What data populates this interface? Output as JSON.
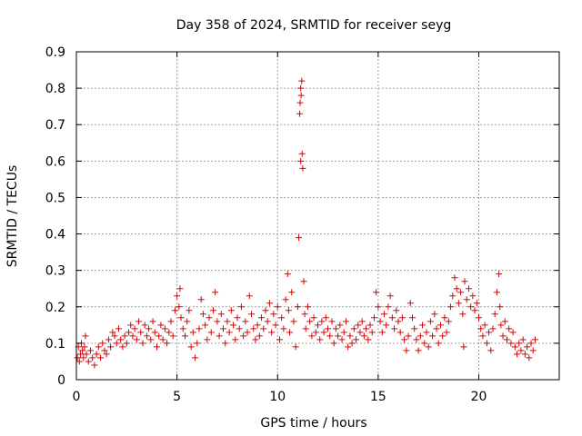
{
  "chart_data": {
    "type": "scatter",
    "title": "Day 358 of 2024, SRMTID for receiver seyg",
    "xlabel": "GPS time / hours",
    "ylabel": "SRMTID / TECUs",
    "xlim": [
      0,
      24
    ],
    "ylim": [
      0,
      0.9
    ],
    "x_ticks": [
      0,
      5,
      10,
      15,
      20
    ],
    "x_tick_labels": [
      "0",
      "5",
      "10",
      "15",
      "20"
    ],
    "y_ticks": [
      0,
      0.1,
      0.2,
      0.3,
      0.4,
      0.5,
      0.6,
      0.7,
      0.8,
      0.9
    ],
    "y_tick_labels": [
      "0",
      "0.1",
      "0.2",
      "0.3",
      "0.4",
      "0.5",
      "0.6",
      "0.7",
      "0.8",
      "0.9"
    ],
    "grid": true,
    "marker": "+",
    "color": "#e00000",
    "series": [
      {
        "name": "SRMTID",
        "points": [
          [
            0.05,
            0.06
          ],
          [
            0.1,
            0.09
          ],
          [
            0.15,
            0.05
          ],
          [
            0.2,
            0.07
          ],
          [
            0.25,
            0.1
          ],
          [
            0.3,
            0.08
          ],
          [
            0.35,
            0.06
          ],
          [
            0.4,
            0.09
          ],
          [
            0.45,
            0.12
          ],
          [
            0.5,
            0.07
          ],
          [
            0.6,
            0.05
          ],
          [
            0.7,
            0.08
          ],
          [
            0.8,
            0.06
          ],
          [
            0.9,
            0.04
          ],
          [
            1.0,
            0.07
          ],
          [
            1.1,
            0.09
          ],
          [
            1.2,
            0.06
          ],
          [
            1.3,
            0.1
          ],
          [
            1.4,
            0.08
          ],
          [
            1.5,
            0.07
          ],
          [
            1.6,
            0.11
          ],
          [
            1.7,
            0.09
          ],
          [
            1.8,
            0.13
          ],
          [
            1.9,
            0.12
          ],
          [
            2.0,
            0.1
          ],
          [
            2.1,
            0.14
          ],
          [
            2.2,
            0.11
          ],
          [
            2.3,
            0.09
          ],
          [
            2.4,
            0.12
          ],
          [
            2.5,
            0.1
          ],
          [
            2.6,
            0.13
          ],
          [
            2.7,
            0.15
          ],
          [
            2.8,
            0.12
          ],
          [
            2.9,
            0.14
          ],
          [
            3.0,
            0.11
          ],
          [
            3.1,
            0.16
          ],
          [
            3.2,
            0.13
          ],
          [
            3.3,
            0.1
          ],
          [
            3.4,
            0.15
          ],
          [
            3.5,
            0.12
          ],
          [
            3.6,
            0.14
          ],
          [
            3.7,
            0.11
          ],
          [
            3.8,
            0.16
          ],
          [
            3.9,
            0.13
          ],
          [
            4.0,
            0.09
          ],
          [
            4.1,
            0.12
          ],
          [
            4.2,
            0.15
          ],
          [
            4.3,
            0.11
          ],
          [
            4.4,
            0.14
          ],
          [
            4.5,
            0.1
          ],
          [
            4.6,
            0.13
          ],
          [
            4.7,
            0.16
          ],
          [
            4.8,
            0.12
          ],
          [
            4.9,
            0.19
          ],
          [
            5.0,
            0.23
          ],
          [
            5.1,
            0.2
          ],
          [
            5.15,
            0.25
          ],
          [
            5.2,
            0.17
          ],
          [
            5.3,
            0.14
          ],
          [
            5.4,
            0.12
          ],
          [
            5.5,
            0.16
          ],
          [
            5.6,
            0.19
          ],
          [
            5.7,
            0.09
          ],
          [
            5.8,
            0.13
          ],
          [
            5.9,
            0.06
          ],
          [
            6.0,
            0.1
          ],
          [
            6.1,
            0.14
          ],
          [
            6.2,
            0.22
          ],
          [
            6.3,
            0.18
          ],
          [
            6.4,
            0.15
          ],
          [
            6.5,
            0.11
          ],
          [
            6.6,
            0.17
          ],
          [
            6.7,
            0.13
          ],
          [
            6.8,
            0.19
          ],
          [
            6.9,
            0.24
          ],
          [
            7.0,
            0.16
          ],
          [
            7.1,
            0.12
          ],
          [
            7.2,
            0.18
          ],
          [
            7.3,
            0.14
          ],
          [
            7.4,
            0.1
          ],
          [
            7.5,
            0.16
          ],
          [
            7.6,
            0.13
          ],
          [
            7.7,
            0.19
          ],
          [
            7.8,
            0.15
          ],
          [
            7.9,
            0.11
          ],
          [
            8.0,
            0.17
          ],
          [
            8.1,
            0.14
          ],
          [
            8.2,
            0.2
          ],
          [
            8.3,
            0.12
          ],
          [
            8.4,
            0.16
          ],
          [
            8.5,
            0.13
          ],
          [
            8.6,
            0.23
          ],
          [
            8.7,
            0.18
          ],
          [
            8.8,
            0.14
          ],
          [
            8.9,
            0.11
          ],
          [
            9.0,
            0.15
          ],
          [
            9.1,
            0.12
          ],
          [
            9.2,
            0.17
          ],
          [
            9.3,
            0.14
          ],
          [
            9.4,
            0.19
          ],
          [
            9.5,
            0.16
          ],
          [
            9.6,
            0.21
          ],
          [
            9.7,
            0.13
          ],
          [
            9.8,
            0.18
          ],
          [
            9.9,
            0.15
          ],
          [
            10.0,
            0.2
          ],
          [
            10.1,
            0.11
          ],
          [
            10.2,
            0.17
          ],
          [
            10.3,
            0.14
          ],
          [
            10.4,
            0.22
          ],
          [
            10.5,
            0.29
          ],
          [
            10.55,
            0.19
          ],
          [
            10.6,
            0.13
          ],
          [
            10.7,
            0.24
          ],
          [
            10.8,
            0.16
          ],
          [
            10.9,
            0.09
          ],
          [
            11.0,
            0.2
          ],
          [
            11.05,
            0.39
          ],
          [
            11.1,
            0.73
          ],
          [
            11.12,
            0.76
          ],
          [
            11.15,
            0.8
          ],
          [
            11.17,
            0.78
          ],
          [
            11.2,
            0.82
          ],
          [
            11.22,
            0.62
          ],
          [
            11.25,
            0.58
          ],
          [
            11.15,
            0.6
          ],
          [
            11.3,
            0.27
          ],
          [
            11.35,
            0.18
          ],
          [
            11.4,
            0.14
          ],
          [
            11.5,
            0.2
          ],
          [
            11.6,
            0.16
          ],
          [
            11.7,
            0.12
          ],
          [
            11.8,
            0.17
          ],
          [
            11.9,
            0.13
          ],
          [
            12.0,
            0.15
          ],
          [
            12.1,
            0.11
          ],
          [
            12.2,
            0.16
          ],
          [
            12.3,
            0.13
          ],
          [
            12.4,
            0.17
          ],
          [
            12.5,
            0.14
          ],
          [
            12.6,
            0.12
          ],
          [
            12.7,
            0.16
          ],
          [
            12.8,
            0.1
          ],
          [
            12.9,
            0.14
          ],
          [
            13.0,
            0.12
          ],
          [
            13.1,
            0.15
          ],
          [
            13.2,
            0.11
          ],
          [
            13.3,
            0.13
          ],
          [
            13.4,
            0.16
          ],
          [
            13.5,
            0.09
          ],
          [
            13.6,
            0.12
          ],
          [
            13.7,
            0.1
          ],
          [
            13.8,
            0.14
          ],
          [
            13.9,
            0.11
          ],
          [
            14.0,
            0.15
          ],
          [
            14.1,
            0.13
          ],
          [
            14.2,
            0.16
          ],
          [
            14.3,
            0.12
          ],
          [
            14.4,
            0.14
          ],
          [
            14.5,
            0.11
          ],
          [
            14.6,
            0.15
          ],
          [
            14.7,
            0.13
          ],
          [
            14.8,
            0.17
          ],
          [
            14.9,
            0.24
          ],
          [
            15.0,
            0.2
          ],
          [
            15.1,
            0.16
          ],
          [
            15.2,
            0.13
          ],
          [
            15.3,
            0.18
          ],
          [
            15.4,
            0.15
          ],
          [
            15.5,
            0.2
          ],
          [
            15.6,
            0.23
          ],
          [
            15.7,
            0.17
          ],
          [
            15.8,
            0.14
          ],
          [
            15.9,
            0.19
          ],
          [
            16.0,
            0.16
          ],
          [
            16.1,
            0.13
          ],
          [
            16.2,
            0.17
          ],
          [
            16.3,
            0.11
          ],
          [
            16.4,
            0.08
          ],
          [
            16.5,
            0.12
          ],
          [
            16.6,
            0.21
          ],
          [
            16.7,
            0.17
          ],
          [
            16.8,
            0.14
          ],
          [
            16.9,
            0.11
          ],
          [
            17.0,
            0.08
          ],
          [
            17.1,
            0.12
          ],
          [
            17.2,
            0.15
          ],
          [
            17.3,
            0.1
          ],
          [
            17.4,
            0.13
          ],
          [
            17.5,
            0.09
          ],
          [
            17.6,
            0.16
          ],
          [
            17.7,
            0.12
          ],
          [
            17.8,
            0.18
          ],
          [
            17.9,
            0.14
          ],
          [
            18.0,
            0.1
          ],
          [
            18.1,
            0.15
          ],
          [
            18.2,
            0.12
          ],
          [
            18.3,
            0.17
          ],
          [
            18.4,
            0.13
          ],
          [
            18.5,
            0.16
          ],
          [
            18.6,
            0.2
          ],
          [
            18.7,
            0.23
          ],
          [
            18.8,
            0.28
          ],
          [
            18.9,
            0.25
          ],
          [
            19.0,
            0.21
          ],
          [
            19.1,
            0.24
          ],
          [
            19.2,
            0.18
          ],
          [
            19.25,
            0.09
          ],
          [
            19.3,
            0.27
          ],
          [
            19.4,
            0.22
          ],
          [
            19.5,
            0.25
          ],
          [
            19.6,
            0.2
          ],
          [
            19.7,
            0.23
          ],
          [
            19.8,
            0.19
          ],
          [
            19.9,
            0.21
          ],
          [
            20.0,
            0.17
          ],
          [
            20.1,
            0.14
          ],
          [
            20.2,
            0.12
          ],
          [
            20.3,
            0.15
          ],
          [
            20.4,
            0.1
          ],
          [
            20.5,
            0.13
          ],
          [
            20.6,
            0.08
          ],
          [
            20.7,
            0.14
          ],
          [
            20.8,
            0.18
          ],
          [
            20.9,
            0.24
          ],
          [
            21.0,
            0.29
          ],
          [
            21.05,
            0.2
          ],
          [
            21.1,
            0.15
          ],
          [
            21.2,
            0.12
          ],
          [
            21.3,
            0.16
          ],
          [
            21.4,
            0.11
          ],
          [
            21.5,
            0.14
          ],
          [
            21.6,
            0.1
          ],
          [
            21.7,
            0.13
          ],
          [
            21.8,
            0.09
          ],
          [
            21.9,
            0.07
          ],
          [
            22.0,
            0.1
          ],
          [
            22.1,
            0.08
          ],
          [
            22.2,
            0.11
          ],
          [
            22.3,
            0.07
          ],
          [
            22.4,
            0.09
          ],
          [
            22.5,
            0.06
          ],
          [
            22.6,
            0.1
          ],
          [
            22.7,
            0.08
          ],
          [
            22.8,
            0.11
          ]
        ]
      }
    ]
  }
}
